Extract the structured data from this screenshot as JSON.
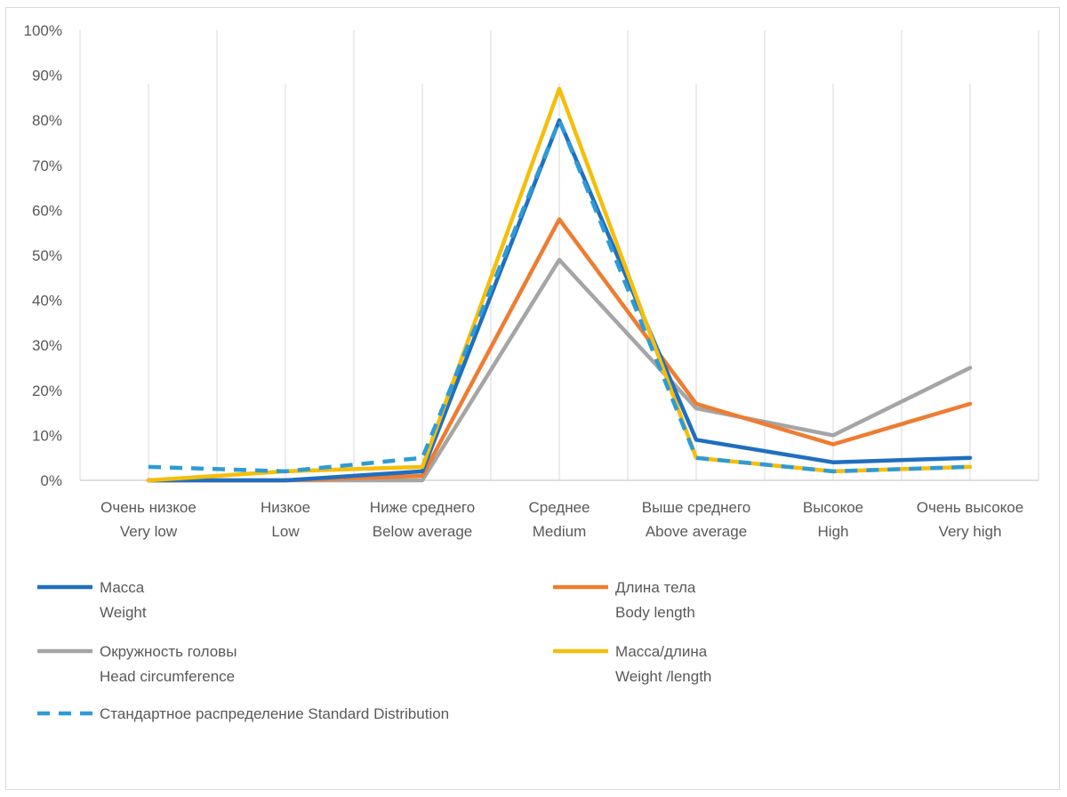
{
  "chart_data": {
    "type": "line",
    "title": "",
    "xlabel": "",
    "ylabel": "",
    "ylim": [
      0,
      1
    ],
    "y_tick_labels": [
      "0%",
      "10%",
      "20%",
      "30%",
      "40%",
      "50%",
      "60%",
      "70%",
      "80%",
      "90%",
      "100%"
    ],
    "grid": "vertical",
    "legend_position": "bottom",
    "categories": [
      [
        "Очень низкое",
        "Very low"
      ],
      [
        "Низкое",
        "Low"
      ],
      [
        "Ниже среднего",
        "Below average"
      ],
      [
        "Среднее",
        "Medium"
      ],
      [
        "Выше среднего",
        "Above average"
      ],
      [
        "Высокое",
        "High"
      ],
      [
        "Очень высокое",
        "Very high"
      ]
    ],
    "series": [
      {
        "name": [
          "Масса",
          "Weight"
        ],
        "color": "#1f6fc0",
        "dash": false,
        "values": [
          0.0,
          0.0,
          0.02,
          0.8,
          0.09,
          0.04,
          0.05
        ]
      },
      {
        "name": [
          "Длина тела",
          "Body length"
        ],
        "color": "#ed7d31",
        "dash": false,
        "values": [
          0.0,
          0.0,
          0.01,
          0.58,
          0.17,
          0.08,
          0.17
        ]
      },
      {
        "name": [
          "Окружность головы",
          "Head circumference"
        ],
        "color": "#a5a5a5",
        "dash": false,
        "values": [
          0.0,
          0.0,
          0.0,
          0.49,
          0.16,
          0.1,
          0.25
        ]
      },
      {
        "name": [
          "Масса/длина",
          "Weight /length"
        ],
        "color": "#f5be0b",
        "dash": false,
        "values": [
          0.0,
          0.02,
          0.03,
          0.87,
          0.05,
          0.02,
          0.03
        ]
      },
      {
        "name": [
          "Стандартное распределение Standard Distribution"
        ],
        "color": "#2e9bd6",
        "dash": true,
        "values": [
          0.03,
          0.02,
          0.05,
          0.8,
          0.05,
          0.02,
          0.03
        ]
      }
    ]
  }
}
